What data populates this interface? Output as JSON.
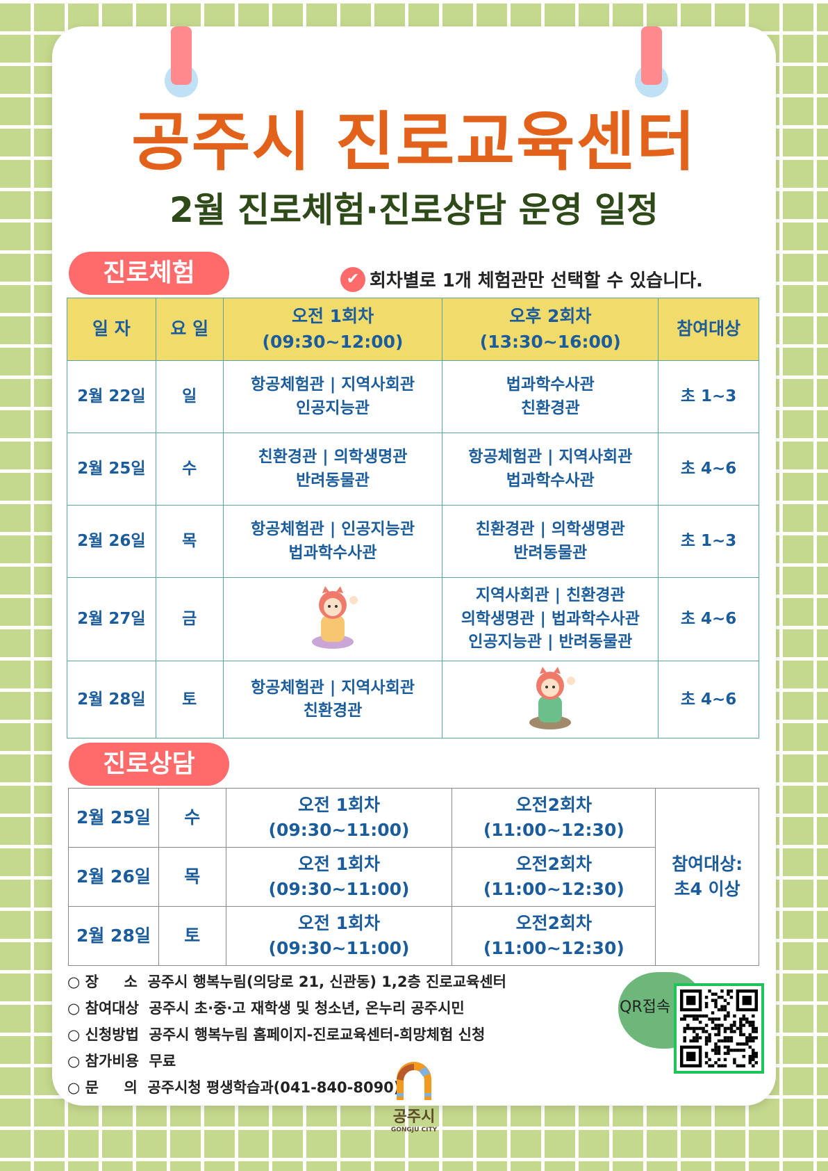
{
  "header": {
    "title": "공주시 진로교육센터",
    "subtitle": "2월 진로체험·진로상담 운영 일정"
  },
  "experience": {
    "label": "진로체험",
    "note": "회차별로 1개 체험관만 선택할 수 있습니다.",
    "note_icon": "check-circle-icon",
    "columns": [
      "일 자",
      "요 일",
      "오전 1회차\n(09:30~12:00)",
      "오후 2회차\n(13:30~16:00)",
      "참여대상"
    ],
    "rows": [
      {
        "date": "2월 22일",
        "day": "일",
        "am": "항공체험관 | 지역사회관\n인공지능관",
        "pm": "법과학수사관\n친환경관",
        "target": "초 1~3"
      },
      {
        "date": "2월 25일",
        "day": "수",
        "am": "친환경관 | 의학생명관\n반려동물관",
        "pm": "항공체험관 | 지역사회관\n법과학수사관",
        "target": "초 4~6"
      },
      {
        "date": "2월 26일",
        "day": "목",
        "am": "항공체험관 | 인공지능관\n법과학수사관",
        "pm": "친환경관 | 의학생명관\n반려동물관",
        "target": "초 1~3"
      },
      {
        "date": "2월 27일",
        "day": "금",
        "am": "",
        "pm": "지역사회관 | 친환경관\n의학생명관 | 법과학수사관\n인공지능관 | 반려동물관",
        "target": "초 4~6"
      },
      {
        "date": "2월 28일",
        "day": "토",
        "am": "항공체험관 | 지역사회관\n친환경관",
        "pm": "",
        "target": "초 4~6"
      }
    ]
  },
  "counseling": {
    "label": "진로상담",
    "target": "참여대상:\n초4 이상",
    "rows": [
      {
        "date": "2월 25일",
        "day": "수",
        "s1": "오전 1회차\n(09:30~11:00)",
        "s2": "오전2회차\n(11:00~12:30)"
      },
      {
        "date": "2월 26일",
        "day": "목",
        "s1": "오전 1회차\n(09:30~11:00)",
        "s2": "오전2회차\n(11:00~12:30)"
      },
      {
        "date": "2월 28일",
        "day": "토",
        "s1": "오전 1회차\n(09:30~11:00)",
        "s2": "오전2회차\n(11:00~12:30)"
      }
    ]
  },
  "info": [
    "○ 장     소  공주시 행복누림(의당로 21, 신관동) 1,2층 진로교육센터",
    "○ 참여대상  공주시 초·중·고 재학생 및 청소년, 온누리 공주시민",
    "○ 신청방법  공주시 행복누림 홈페이지-진로교육센터-희망체험 신청",
    "○ 참가비용  무료",
    "○ 문     의  공주시청 평생학습과(041-840-8090)"
  ],
  "qr": {
    "label": "QR접속"
  },
  "logo": {
    "name": "공주시",
    "english": "GONGJU CITY"
  },
  "colors": {
    "title": "#e2621b",
    "subtitle": "#2e4a18",
    "pill": "#ff6b6b",
    "table_header": "#f1db6b",
    "table_text": "#1b5c9c",
    "background": "#c4d88e"
  }
}
